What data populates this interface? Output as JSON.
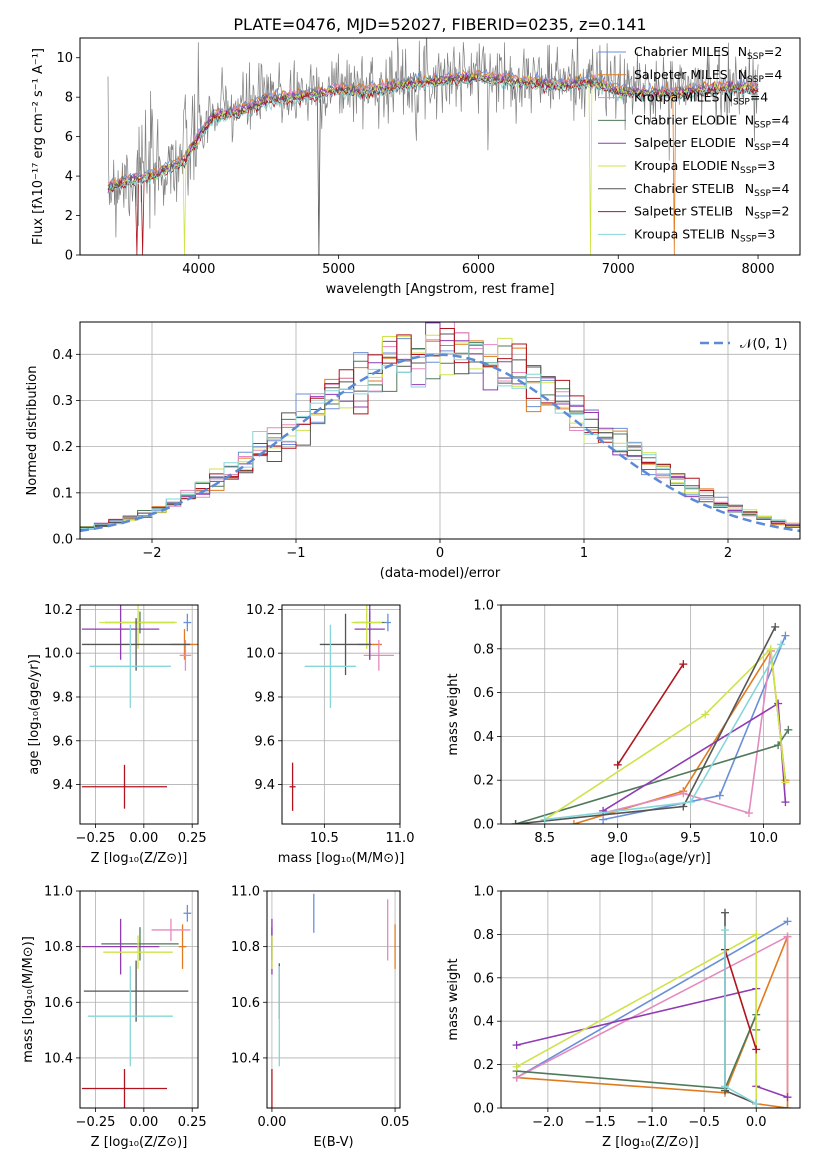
{
  "title": "PLATE=0476, MJD=52027, FIBERID=0235, z=0.141",
  "colors": {
    "Chabrier MILES": "#6a8fd8",
    "Salpeter MILES": "#e07b1f",
    "Kroupa MILES": "#e58abf",
    "Chabrier ELODIE": "#4f7a5a",
    "Salpeter ELODIE": "#8f3bb4",
    "Kroupa ELODIE": "#cfe34a",
    "Chabrier STELIB": "#555555",
    "Salpeter STELIB": "#b0141e",
    "Kroupa STELIB": "#86d6d9",
    "data": "#808080",
    "gaussian": "#5b8ad6"
  },
  "chart_data": [
    {
      "type": "line",
      "id": "spectrum",
      "xlabel": "wavelength [Angstrom, rest frame]",
      "ylabel": "Flux [fλ10⁻¹⁷ erg cm⁻² s⁻¹ A⁻¹]",
      "xlim": [
        3150,
        8300
      ],
      "ylim": [
        0,
        11
      ],
      "xticks": [
        4000,
        5000,
        6000,
        7000,
        8000
      ],
      "yticks": [
        0,
        2,
        4,
        6,
        8,
        10
      ],
      "grid": false,
      "legend_position": "top-right",
      "legend": [
        {
          "name": "Chabrier MILES",
          "nssp": "2"
        },
        {
          "name": "Salpeter MILES",
          "nssp": "4"
        },
        {
          "name": "Kroupa MILES",
          "nssp": "4"
        },
        {
          "name": "Chabrier ELODIE",
          "nssp": "4"
        },
        {
          "name": "Salpeter ELODIE",
          "nssp": "4"
        },
        {
          "name": "Kroupa ELODIE",
          "nssp": "3"
        },
        {
          "name": "Chabrier STELIB",
          "nssp": "4"
        },
        {
          "name": "Salpeter STELIB",
          "nssp": "2"
        },
        {
          "name": "Kroupa STELIB",
          "nssp": "3"
        }
      ],
      "data_range": [
        3350,
        8000
      ],
      "model_continuum": {
        "x": [
          3350,
          3500,
          3700,
          3900,
          4000,
          4100,
          4300,
          4500,
          4800,
          5000,
          5200,
          5500,
          5800,
          6000,
          6300,
          6600,
          6800,
          7000,
          7300,
          7500,
          7800,
          8000
        ],
        "y": [
          3.6,
          4.0,
          4.3,
          5.0,
          6.2,
          7.2,
          7.5,
          8.1,
          8.3,
          8.6,
          8.5,
          8.9,
          9.1,
          9.2,
          9.0,
          8.8,
          9.0,
          8.5,
          8.4,
          8.5,
          8.7,
          8.6
        ]
      }
    },
    {
      "type": "line",
      "id": "residuals",
      "xlabel": "(data-model)/error",
      "ylabel": "Normed distribution",
      "xlim": [
        -2.5,
        2.5
      ],
      "ylim": [
        0,
        0.47
      ],
      "xticks": [
        -2,
        -1,
        0,
        1,
        2
      ],
      "yticks": [
        0.0,
        0.1,
        0.2,
        0.3,
        0.4
      ],
      "grid": true,
      "legend_position": "top-right",
      "legend_label": "𝒩(0, 1)",
      "gaussian": {
        "mean": 0,
        "sigma": 1
      },
      "histogram_bin_width": 0.1
    },
    {
      "type": "scatter",
      "id": "age-vs-Z",
      "xlabel": "Z [log₁₀(Z/Z⊙)]",
      "ylabel": "age  [log₁₀(age/yr)]",
      "xlim": [
        -0.33,
        0.28
      ],
      "ylim": [
        9.22,
        10.22
      ],
      "xticks": [
        -0.25,
        0.0,
        0.25
      ],
      "xticklabels": [
        "−0.25",
        "0.00",
        "0.25"
      ],
      "yticks": [
        9.4,
        9.6,
        9.8,
        10.0,
        10.2
      ],
      "grid": true,
      "points": [
        {
          "model": "Chabrier MILES",
          "x": 0.225,
          "xerr": 0.02,
          "y": 10.14,
          "yerr": 0.04
        },
        {
          "model": "Salpeter MILES",
          "x": 0.21,
          "xerr": 0.07,
          "y": 10.04,
          "yerr": 0.07
        },
        {
          "model": "Kroupa MILES",
          "x": 0.215,
          "xerr": 0.03,
          "y": 9.99,
          "yerr": 0.07
        },
        {
          "model": "Chabrier ELODIE",
          "x": -0.02,
          "xerr": 0.18,
          "y": 10.14,
          "yerr": 0.05
        },
        {
          "model": "Salpeter ELODIE",
          "x": -0.12,
          "xerr": 0.2,
          "y": 10.11,
          "yerr": 0.14
        },
        {
          "model": "Kroupa ELODIE",
          "x": -0.03,
          "xerr": 0.2,
          "y": 10.14,
          "yerr": 0.12
        },
        {
          "model": "Chabrier STELIB",
          "x": -0.04,
          "xerr": 0.28,
          "y": 10.04,
          "yerr": 0.12
        },
        {
          "model": "Salpeter STELIB",
          "x": -0.1,
          "xerr": 0.22,
          "y": 9.39,
          "yerr": 0.1
        },
        {
          "model": "Kroupa STELIB",
          "x": -0.07,
          "xerr": 0.21,
          "y": 9.94,
          "yerr": 0.19
        }
      ]
    },
    {
      "type": "scatter",
      "id": "age-vs-mass",
      "xlabel": "mass [log₁₀(M/M⊙)]",
      "ylabel": "",
      "xlim": [
        10.22,
        11.0
      ],
      "ylim": [
        9.22,
        10.22
      ],
      "xticks": [
        10.5,
        11.0
      ],
      "yticks": [
        9.4,
        9.6,
        9.8,
        10.0,
        10.2
      ],
      "grid": true,
      "points": [
        {
          "model": "Chabrier MILES",
          "x": 10.92,
          "xerr": 0.02,
          "y": 10.14,
          "yerr": 0.04
        },
        {
          "model": "Salpeter MILES",
          "x": 10.8,
          "xerr": 0.08,
          "y": 10.04,
          "yerr": 0.07
        },
        {
          "model": "Kroupa MILES",
          "x": 10.86,
          "xerr": 0.1,
          "y": 9.99,
          "yerr": 0.07
        },
        {
          "model": "Chabrier ELODIE",
          "x": 10.8,
          "xerr": 0.1,
          "y": 10.14,
          "yerr": 0.05
        },
        {
          "model": "Salpeter ELODIE",
          "x": 10.8,
          "xerr": 0.1,
          "y": 10.11,
          "yerr": 0.14
        },
        {
          "model": "Kroupa ELODIE",
          "x": 10.78,
          "xerr": 0.1,
          "y": 10.14,
          "yerr": 0.12
        },
        {
          "model": "Chabrier STELIB",
          "x": 10.64,
          "xerr": 0.17,
          "y": 10.04,
          "yerr": 0.14
        },
        {
          "model": "Salpeter STELIB",
          "x": 10.29,
          "xerr": 0.02,
          "y": 9.39,
          "yerr": 0.11
        },
        {
          "model": "Kroupa STELIB",
          "x": 10.54,
          "xerr": 0.17,
          "y": 9.94,
          "yerr": 0.19
        }
      ]
    },
    {
      "type": "line",
      "id": "weight-vs-age",
      "xlabel": "age  [log₁₀(age/yr)]",
      "ylabel": "mass weight",
      "xlim": [
        8.2,
        10.25
      ],
      "ylim": [
        0,
        1
      ],
      "xticks": [
        8.5,
        9.0,
        9.5,
        10.0
      ],
      "yticks": [
        0.0,
        0.2,
        0.4,
        0.6,
        0.8,
        1.0
      ],
      "grid": true,
      "series": [
        {
          "model": "Chabrier MILES",
          "x": [
            8.9,
            9.7,
            10.15
          ],
          "y": [
            0.02,
            0.13,
            0.86
          ]
        },
        {
          "model": "Salpeter MILES",
          "x": [
            8.7,
            9.45,
            10.05,
            10.15
          ],
          "y": [
            0.0,
            0.15,
            0.79,
            0.2
          ]
        },
        {
          "model": "Kroupa MILES",
          "x": [
            8.9,
            9.45,
            9.9,
            10.05
          ],
          "y": [
            0.05,
            0.14,
            0.05,
            0.79
          ]
        },
        {
          "model": "Chabrier ELODIE",
          "x": [
            8.3,
            10.1,
            10.17
          ],
          "y": [
            0.0,
            0.36,
            0.43
          ]
        },
        {
          "model": "Salpeter ELODIE",
          "x": [
            8.9,
            10.1,
            10.15
          ],
          "y": [
            0.06,
            0.55,
            0.1
          ]
        },
        {
          "model": "Kroupa ELODIE",
          "x": [
            8.5,
            9.6,
            10.05,
            10.15
          ],
          "y": [
            0.02,
            0.5,
            0.8,
            0.19
          ]
        },
        {
          "model": "Chabrier STELIB",
          "x": [
            8.3,
            9.45,
            10.08
          ],
          "y": [
            0.0,
            0.08,
            0.9
          ]
        },
        {
          "model": "Salpeter STELIB",
          "x": [
            9.0,
            9.45
          ],
          "y": [
            0.27,
            0.73
          ]
        },
        {
          "model": "Kroupa STELIB",
          "x": [
            8.5,
            9.5,
            10.12
          ],
          "y": [
            0.02,
            0.1,
            0.82
          ]
        }
      ]
    },
    {
      "type": "scatter",
      "id": "mass-vs-Z",
      "xlabel": "Z [log₁₀(Z/Z⊙)]",
      "ylabel": "mass [log₁₀(M/M⊙)]",
      "xlim": [
        -0.33,
        0.28
      ],
      "ylim": [
        10.22,
        11.0
      ],
      "xticks": [
        -0.25,
        0.0,
        0.25
      ],
      "xticklabels": [
        "−0.25",
        "0.00",
        "0.25"
      ],
      "yticks": [
        10.4,
        10.6,
        10.8,
        11.0
      ],
      "grid": true,
      "points": [
        {
          "model": "Chabrier MILES",
          "x": 0.225,
          "xerr": 0.02,
          "y": 10.92,
          "yerr": 0.03
        },
        {
          "model": "Salpeter MILES",
          "x": 0.2,
          "xerr": 0.02,
          "y": 10.8,
          "yerr": 0.08
        },
        {
          "model": "Kroupa MILES",
          "x": 0.14,
          "xerr": 0.1,
          "y": 10.86,
          "yerr": 0.04
        },
        {
          "model": "Chabrier ELODIE",
          "x": -0.02,
          "xerr": 0.2,
          "y": 10.81,
          "yerr": 0.06
        },
        {
          "model": "Salpeter ELODIE",
          "x": -0.12,
          "xerr": 0.2,
          "y": 10.8,
          "yerr": 0.1
        },
        {
          "model": "Kroupa ELODIE",
          "x": -0.03,
          "xerr": 0.18,
          "y": 10.78,
          "yerr": 0.06
        },
        {
          "model": "Chabrier STELIB",
          "x": -0.04,
          "xerr": 0.27,
          "y": 10.64,
          "yerr": 0.11
        },
        {
          "model": "Salpeter STELIB",
          "x": -0.1,
          "xerr": 0.22,
          "y": 10.29,
          "yerr": 0.07
        },
        {
          "model": "Kroupa STELIB",
          "x": -0.07,
          "xerr": 0.22,
          "y": 10.55,
          "yerr": 0.18
        }
      ]
    },
    {
      "type": "scatter",
      "id": "mass-vs-ebv",
      "xlabel": "E(B-V)",
      "ylabel": "",
      "xlim": [
        -0.002,
        0.052
      ],
      "ylim": [
        10.22,
        11.0
      ],
      "xticks": [
        0.0,
        0.05
      ],
      "xticklabels": [
        "0.00",
        "0.05"
      ],
      "yticks": [
        10.4,
        10.6,
        10.8,
        11.0
      ],
      "grid": true,
      "points": [
        {
          "model": "Chabrier MILES",
          "x": 0.017,
          "y": 10.92,
          "yerr": 0.07
        },
        {
          "model": "Salpeter MILES",
          "x": 0.05,
          "y": 10.8,
          "yerr": 0.08
        },
        {
          "model": "Kroupa MILES",
          "x": 0.047,
          "y": 10.86,
          "yerr": 0.11
        },
        {
          "model": "Chabrier ELODIE",
          "x": 0.0,
          "y": 10.81,
          "yerr": 0.06
        },
        {
          "model": "Salpeter ELODIE",
          "x": 0.0,
          "y": 10.8,
          "yerr": 0.1
        },
        {
          "model": "Kroupa ELODIE",
          "x": 0.0,
          "y": 10.78,
          "yerr": 0.06
        },
        {
          "model": "Chabrier STELIB",
          "x": 0.003,
          "y": 10.64,
          "yerr": 0.1
        },
        {
          "model": "Salpeter STELIB",
          "x": 0.0,
          "y": 10.29,
          "yerr": 0.07
        },
        {
          "model": "Kroupa STELIB",
          "x": 0.003,
          "y": 10.55,
          "yerr": 0.18
        }
      ]
    },
    {
      "type": "line",
      "id": "weight-vs-Z",
      "xlabel": "Z [log₁₀(Z/Z⊙)]",
      "ylabel": "mass weight",
      "xlim": [
        -2.45,
        0.42
      ],
      "ylim": [
        0,
        1
      ],
      "xticks": [
        -2.0,
        -1.5,
        -1.0,
        -0.5,
        0.0
      ],
      "xticklabels": [
        "−2.0",
        "−1.5",
        "−1.0",
        "−0.5",
        "0.0"
      ],
      "yticks": [
        0.0,
        0.2,
        0.4,
        0.6,
        0.8,
        1.0
      ],
      "grid": true,
      "series": [
        {
          "model": "Chabrier MILES",
          "x": [
            -2.3,
            0.3
          ],
          "y": [
            0.14,
            0.86
          ]
        },
        {
          "model": "Salpeter MILES",
          "x": [
            -2.3,
            -0.3,
            0.3,
            0.3,
            0.0
          ],
          "y": [
            0.14,
            0.07,
            0.79,
            0.0,
            0.02
          ]
        },
        {
          "model": "Kroupa MILES",
          "x": [
            -2.3,
            0.3,
            0.3
          ],
          "y": [
            0.14,
            0.79,
            0.05
          ]
        },
        {
          "model": "Chabrier ELODIE",
          "x": [
            -2.3,
            -0.3,
            0.0,
            0.0
          ],
          "y": [
            0.17,
            0.09,
            0.43,
            0.36
          ]
        },
        {
          "model": "Salpeter ELODIE",
          "x": [
            -2.3,
            0.0,
            0.0,
            0.3
          ],
          "y": [
            0.29,
            0.55,
            0.1,
            0.05
          ]
        },
        {
          "model": "Kroupa ELODIE",
          "x": [
            -2.3,
            0.0,
            0.0
          ],
          "y": [
            0.19,
            0.8,
            0.02
          ]
        },
        {
          "model": "Chabrier STELIB",
          "x": [
            -0.3,
            -0.3,
            0.0
          ],
          "y": [
            0.9,
            0.08,
            0.02
          ]
        },
        {
          "model": "Salpeter STELIB",
          "x": [
            -0.3,
            0.0
          ],
          "y": [
            0.73,
            0.27
          ]
        },
        {
          "model": "Kroupa STELIB",
          "x": [
            -0.3,
            -0.3,
            0.0
          ],
          "y": [
            0.82,
            0.1,
            0.02
          ]
        }
      ]
    }
  ]
}
